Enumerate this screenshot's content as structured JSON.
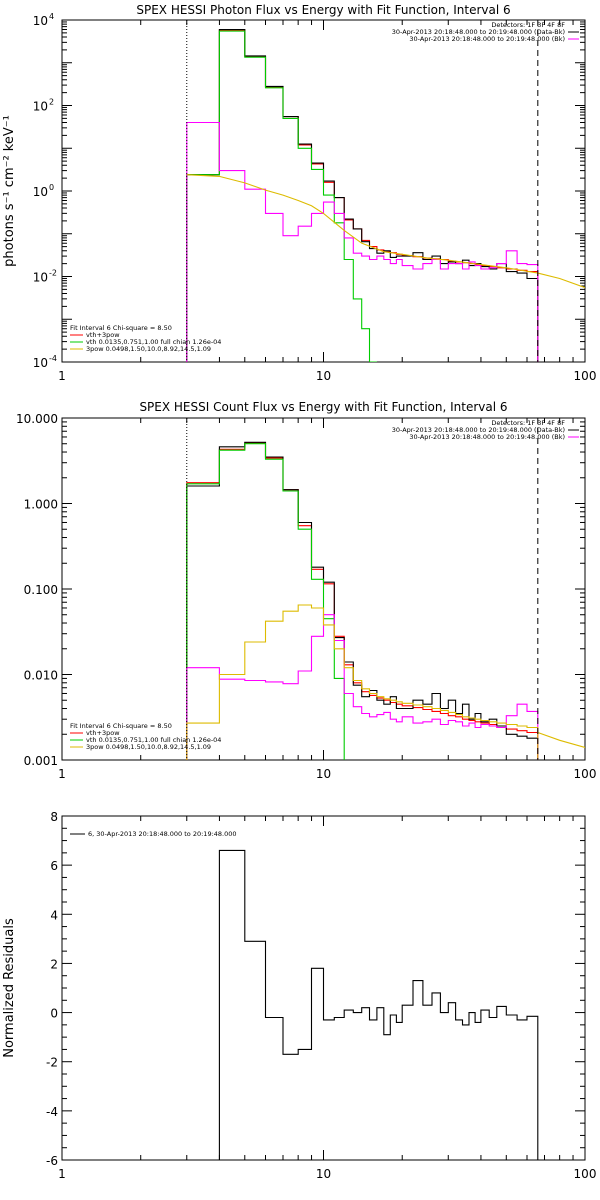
{
  "chart_data": [
    {
      "type": "line",
      "title": "SPEX HESSI Photon Flux vs Energy with Fit Function, Interval 6",
      "xlabel": "",
      "ylabel": "photons s⁻¹ cm⁻² keV⁻¹",
      "xscale": "log",
      "yscale": "log",
      "xlim": [
        1,
        100
      ],
      "ylim": [
        0.0001,
        10000
      ],
      "x_ticks": [
        {
          "v": 1,
          "label": "1"
        },
        {
          "v": 10,
          "label": "10"
        },
        {
          "v": 100,
          "label": "100"
        }
      ],
      "y_ticks": [
        {
          "v": 0.0001,
          "base": "10",
          "exp": "-4"
        },
        {
          "v": 0.01,
          "base": "10",
          "exp": "-2"
        },
        {
          "v": 1,
          "base": "10",
          "exp": "0"
        },
        {
          "v": 100,
          "base": "10",
          "exp": "2"
        },
        {
          "v": 10000,
          "base": "10",
          "exp": "4"
        }
      ],
      "vlines": [
        {
          "x": 3,
          "style": "dotted",
          "color": "#000000"
        },
        {
          "x": 66,
          "style": "dashed",
          "color": "#000000"
        }
      ],
      "legend_right": [
        {
          "text": "Detectors: 1F 3F 4F 8F",
          "color": null
        },
        {
          "text": "30-Apr-2013 20:18:48.000 to 20:19:48.000 (Data-Bk)",
          "color": "#000000"
        },
        {
          "text": "30-Apr-2013 20:18:48.000 to 20:19:48.000 (Bk)",
          "color": "#ff00ff"
        }
      ],
      "legend_left": [
        {
          "text": "Fit Interval  6    Chi-square = 8.50",
          "color": null
        },
        {
          "text": "vth+3pow",
          "color": "#ff0000"
        },
        {
          "text": "vth 0.0135,0.751,1.00  full chian 1.26e-04",
          "color": "#00cc00"
        },
        {
          "text": "3pow 0.0498,1.50,10.0,8.92,14.5,1.09",
          "color": "#ddbb00"
        }
      ],
      "series": [
        {
          "name": "vth+3pow",
          "color": "#ff0000",
          "kind": "step",
          "edges": [
            3,
            4,
            5,
            6,
            7,
            8,
            9,
            10,
            11,
            12,
            13,
            14,
            15,
            16,
            17,
            18,
            19,
            20,
            22,
            24,
            26,
            28,
            30,
            32,
            34,
            36,
            38,
            40,
            43,
            46,
            50,
            55,
            60,
            66
          ],
          "values": [
            2.4,
            5800,
            1400,
            270,
            55,
            12,
            4.3,
            1.6,
            0.7,
            0.21,
            0.13,
            0.07,
            0.05,
            0.042,
            0.038,
            0.036,
            0.033,
            0.031,
            0.029,
            0.027,
            0.026,
            0.025,
            0.023,
            0.022,
            0.021,
            0.02,
            0.019,
            0.018,
            0.017,
            0.016,
            0.015,
            0.014,
            0.013
          ]
        },
        {
          "name": "Data-Bk",
          "color": "#000000",
          "kind": "step",
          "edges": [
            3,
            4,
            5,
            6,
            7,
            8,
            9,
            10,
            11,
            12,
            13,
            14,
            15,
            16,
            17,
            18,
            19,
            20,
            22,
            24,
            26,
            28,
            30,
            32,
            34,
            36,
            38,
            40,
            43,
            46,
            50,
            55,
            60,
            66
          ],
          "values": [
            2.4,
            6000,
            1450,
            280,
            55,
            12.5,
            4.5,
            1.7,
            0.7,
            0.22,
            0.13,
            0.065,
            0.045,
            0.035,
            0.04,
            0.028,
            0.03,
            0.03,
            0.036,
            0.025,
            0.03,
            0.02,
            0.022,
            0.02,
            0.024,
            0.018,
            0.02,
            0.017,
            0.015,
            0.02,
            0.013,
            0.012,
            0.009
          ]
        },
        {
          "name": "vth",
          "color": "#00cc00",
          "kind": "step",
          "edges": [
            3,
            4,
            5,
            6,
            7,
            8,
            9,
            10,
            11,
            12,
            13,
            14,
            15,
            16
          ],
          "values": [
            2.4,
            5500,
            1350,
            260,
            50,
            10,
            3.2,
            0.8,
            0.18,
            0.025,
            0.003,
            0.0006,
            0.0001
          ]
        },
        {
          "name": "Bk",
          "color": "#ff00ff",
          "kind": "step",
          "edges": [
            3,
            4,
            5,
            6,
            7,
            8,
            9,
            10,
            11,
            12,
            13,
            14,
            15,
            16,
            17,
            18,
            19,
            20,
            22,
            24,
            26,
            28,
            30,
            32,
            34,
            36,
            38,
            40,
            43,
            46,
            50,
            55,
            60,
            66
          ],
          "values": [
            40,
            3,
            1.1,
            0.3,
            0.09,
            0.15,
            0.3,
            0.55,
            0.3,
            0.08,
            0.035,
            0.03,
            0.025,
            0.03,
            0.025,
            0.02,
            0.025,
            0.018,
            0.015,
            0.02,
            0.025,
            0.015,
            0.02,
            0.02,
            0.015,
            0.022,
            0.018,
            0.015,
            0.016,
            0.02,
            0.04,
            0.02,
            0.019
          ]
        },
        {
          "name": "3pow",
          "color": "#ddbb00",
          "kind": "line",
          "x": [
            3,
            4,
            5,
            6,
            7,
            8,
            9,
            10,
            12,
            14,
            17,
            20,
            25,
            30,
            40,
            50,
            66,
            80,
            100
          ],
          "values": [
            2.4,
            2.2,
            1.55,
            1.05,
            0.8,
            0.6,
            0.45,
            0.3,
            0.12,
            0.06,
            0.038,
            0.033,
            0.027,
            0.024,
            0.019,
            0.016,
            0.012,
            0.009,
            0.0055
          ]
        }
      ]
    },
    {
      "type": "line",
      "title": "SPEX HESSI Count Flux vs Energy with Fit Function, Interval 6",
      "xlabel": "",
      "ylabel": "",
      "xscale": "log",
      "yscale": "log",
      "xlim": [
        1,
        100
      ],
      "ylim": [
        0.001,
        10
      ],
      "x_ticks": [
        {
          "v": 1,
          "label": "1"
        },
        {
          "v": 10,
          "label": "10"
        },
        {
          "v": 100,
          "label": "100"
        }
      ],
      "y_ticks": [
        {
          "v": 0.001,
          "label": "0.001"
        },
        {
          "v": 0.01,
          "label": "0.010"
        },
        {
          "v": 0.1,
          "label": "0.100"
        },
        {
          "v": 1,
          "label": "1.000"
        },
        {
          "v": 10,
          "label": "10.000"
        }
      ],
      "vlines": [
        {
          "x": 3,
          "style": "dotted",
          "color": "#000000"
        },
        {
          "x": 66,
          "style": "dashed",
          "color": "#000000"
        }
      ],
      "legend_right": [
        {
          "text": "Detectors: 1F 3F 4F 8F",
          "color": null
        },
        {
          "text": "30-Apr-2013 20:18:48.000 to 20:19:48.000 (Data-Bk)",
          "color": "#000000"
        },
        {
          "text": "30-Apr-2013 20:18:48.000 to 20:19:48.000 (Bk)",
          "color": "#ff00ff"
        }
      ],
      "legend_left": [
        {
          "text": "Fit Interval  6    Chi-square = 8.50",
          "color": null
        },
        {
          "text": "vth+3pow",
          "color": "#ff0000"
        },
        {
          "text": "vth 0.0135,0.751,1.00  full chian 1.26e-04",
          "color": "#00cc00"
        },
        {
          "text": "3pow 0.0498,1.50,10.0,8.92,14.5,1.09",
          "color": "#ddbb00"
        }
      ],
      "series": [
        {
          "name": "vth+3pow",
          "color": "#ff0000",
          "kind": "step",
          "edges": [
            3,
            4,
            5,
            6,
            7,
            8,
            9,
            10,
            11,
            12,
            13,
            14,
            15,
            16,
            17,
            18,
            19,
            20,
            22,
            24,
            26,
            28,
            30,
            32,
            34,
            36,
            38,
            40,
            43,
            46,
            50,
            55,
            60,
            66
          ],
          "values": [
            1.75,
            4.3,
            5.1,
            3.4,
            1.45,
            0.55,
            0.17,
            0.115,
            0.028,
            0.013,
            0.008,
            0.0063,
            0.0057,
            0.0053,
            0.005,
            0.0047,
            0.0045,
            0.0043,
            0.0041,
            0.0039,
            0.0037,
            0.0035,
            0.0033,
            0.0032,
            0.003,
            0.0029,
            0.0028,
            0.0027,
            0.0026,
            0.0024,
            0.0023,
            0.0022,
            0.0021
          ]
        },
        {
          "name": "Data-Bk",
          "color": "#000000",
          "kind": "step",
          "edges": [
            3,
            4,
            5,
            6,
            7,
            8,
            9,
            10,
            11,
            12,
            13,
            14,
            15,
            16,
            17,
            18,
            19,
            20,
            22,
            24,
            26,
            28,
            30,
            32,
            34,
            36,
            38,
            40,
            43,
            46,
            50,
            55,
            60,
            66
          ],
          "values": [
            1.6,
            4.6,
            5.2,
            3.5,
            1.45,
            0.6,
            0.18,
            0.12,
            0.027,
            0.014,
            0.0075,
            0.0055,
            0.0065,
            0.005,
            0.0045,
            0.0055,
            0.004,
            0.004,
            0.005,
            0.0045,
            0.006,
            0.004,
            0.005,
            0.0035,
            0.0045,
            0.003,
            0.0035,
            0.0028,
            0.003,
            0.0025,
            0.002,
            0.0019,
            0.0018
          ]
        },
        {
          "name": "vth",
          "color": "#00cc00",
          "kind": "step",
          "edges": [
            3,
            4,
            5,
            6,
            7,
            8,
            9,
            10,
            11,
            12
          ],
          "values": [
            1.7,
            4.2,
            5.0,
            3.3,
            1.4,
            0.5,
            0.13,
            0.045,
            0.009
          ]
        },
        {
          "name": "Bk",
          "color": "#ff00ff",
          "kind": "step",
          "edges": [
            3,
            4,
            5,
            6,
            7,
            8,
            9,
            10,
            11,
            12,
            13,
            14,
            15,
            16,
            17,
            18,
            19,
            20,
            22,
            24,
            26,
            28,
            30,
            32,
            34,
            36,
            38,
            40,
            43,
            46,
            50,
            55,
            60,
            66
          ],
          "values": [
            0.012,
            0.0088,
            0.0085,
            0.0082,
            0.0078,
            0.011,
            0.028,
            0.05,
            0.025,
            0.006,
            0.0042,
            0.0035,
            0.0032,
            0.0034,
            0.0036,
            0.003,
            0.0028,
            0.0032,
            0.0027,
            0.0028,
            0.003,
            0.0026,
            0.0029,
            0.0028,
            0.0025,
            0.0027,
            0.0024,
            0.0026,
            0.0025,
            0.0024,
            0.0033,
            0.0045,
            0.0037
          ]
        },
        {
          "name": "3pow",
          "color": "#ddbb00",
          "kind": "step",
          "edges": [
            3,
            4,
            5,
            6,
            7,
            8,
            9,
            10,
            11,
            12,
            13,
            14,
            15,
            16,
            17,
            18,
            19,
            20,
            22,
            24,
            26,
            28,
            30,
            32,
            34,
            36,
            38,
            40,
            43,
            46,
            50,
            55,
            60,
            66
          ],
          "values": [
            0.0027,
            0.01,
            0.024,
            0.042,
            0.055,
            0.065,
            0.06,
            0.038,
            0.02,
            0.012,
            0.0085,
            0.0068,
            0.006,
            0.0055,
            0.0052,
            0.005,
            0.0048,
            0.0046,
            0.0044,
            0.0042,
            0.004,
            0.0038,
            0.0036,
            0.0034,
            0.0032,
            0.0031,
            0.003,
            0.0029,
            0.0028,
            0.0027,
            0.0026,
            0.0025,
            0.0024
          ]
        },
        {
          "name": "3pow-ext",
          "color": "#ddbb00",
          "kind": "line",
          "x": [
            66,
            80,
            100
          ],
          "values": [
            0.0021,
            0.0017,
            0.0014
          ]
        }
      ]
    },
    {
      "type": "line",
      "title": "",
      "xlabel": "",
      "ylabel": "Normalized Residuals",
      "xscale": "log",
      "yscale": "linear",
      "xlim": [
        1,
        100
      ],
      "ylim": [
        -6,
        8
      ],
      "x_ticks": [
        {
          "v": 1,
          "label": "1"
        },
        {
          "v": 10,
          "label": "10"
        },
        {
          "v": 100,
          "label": "100"
        }
      ],
      "y_ticks": [
        {
          "v": -6,
          "label": "-6"
        },
        {
          "v": -4,
          "label": "-4"
        },
        {
          "v": -2,
          "label": "-2"
        },
        {
          "v": 0,
          "label": "0"
        },
        {
          "v": 2,
          "label": "2"
        },
        {
          "v": 4,
          "label": "4"
        },
        {
          "v": 6,
          "label": "6"
        },
        {
          "v": 8,
          "label": "8"
        }
      ],
      "vlines": [],
      "legend_right": [],
      "legend_left": [
        {
          "text": "6, 30-Apr-2013 20:18:48.000 to 20:19:48.000",
          "color": "#000000"
        }
      ],
      "series": [
        {
          "name": "residuals",
          "color": "#000000",
          "kind": "step",
          "edges": [
            3,
            4,
            5,
            6,
            7,
            8,
            9,
            10,
            11,
            12,
            13,
            14,
            15,
            16,
            17,
            18,
            19,
            20,
            22,
            24,
            26,
            28,
            30,
            32,
            34,
            36,
            38,
            40,
            43,
            46,
            50,
            55,
            60,
            66
          ],
          "values": [
            -6,
            6.6,
            2.9,
            -0.2,
            -1.7,
            -1.5,
            1.8,
            -0.3,
            -0.2,
            0.1,
            0,
            0.2,
            -0.3,
            0.2,
            -0.9,
            -0.1,
            -0.4,
            0.3,
            1.3,
            0.3,
            0.8,
            0,
            0.4,
            -0.3,
            -0.5,
            0,
            -0.4,
            0.1,
            -0.2,
            0.25,
            -0.1,
            -0.3,
            -0.15
          ]
        }
      ]
    }
  ]
}
